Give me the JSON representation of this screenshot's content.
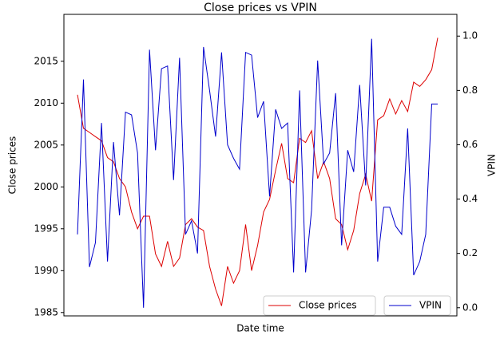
{
  "chart_data": {
    "type": "line",
    "title": "Close prices vs VPIN",
    "xlabel": "Date time",
    "ylabel": "Close prices",
    "y2label": "VPIN",
    "legend": "lower right",
    "ylim": [
      1984.6,
      2020.6
    ],
    "yticks": [
      1985,
      1990,
      1995,
      2000,
      2005,
      2010,
      2015
    ],
    "y2lim": [
      -0.03,
      1.08
    ],
    "y2ticks": [
      {
        "value": 0,
        "label": "0.0"
      },
      0.2,
      0.4,
      0.6,
      0.8,
      {
        "value": 1,
        "label": "1.0"
      }
    ],
    "series": [
      {
        "name": "Close prices",
        "color": "#dd0000",
        "values": [
          2011,
          2007,
          2006.5,
          2006,
          2005.5,
          2003.5,
          2003,
          2001,
          2000,
          1997,
          1995,
          1996.5,
          1996.5,
          1992,
          1990.5,
          1993.5,
          1990.5,
          1991.5,
          1995.5,
          1996.2,
          1995.2,
          1994.8,
          1990.5,
          1987.8,
          1985.8,
          1990.5,
          1988.5,
          1990,
          1995.5,
          1990,
          1993,
          1997,
          1998.5,
          2002,
          2005.2,
          2001,
          2000.5,
          2005.8,
          2005.3,
          2006.7,
          2001,
          2003,
          2001,
          1996.2,
          1995.5,
          1992.5,
          1994.8,
          1999.2,
          2001.5,
          1998.3,
          2008,
          2008.5,
          2010.5,
          2008.7,
          2010.3,
          2009,
          2012.5,
          2012,
          2012.8,
          2014,
          2017.8
        ]
      },
      {
        "name": "VPIN",
        "color": "#0000cc",
        "axis": "y2",
        "values": [
          0.27,
          0.84,
          0.15,
          0.24,
          0.68,
          0.17,
          0.61,
          0.34,
          0.72,
          0.71,
          0.57,
          0.0,
          0.95,
          0.58,
          0.88,
          0.89,
          0.47,
          0.92,
          0.27,
          0.32,
          0.2,
          0.96,
          0.8,
          0.63,
          0.94,
          0.6,
          0.55,
          0.51,
          0.94,
          0.93,
          0.7,
          0.76,
          0.41,
          0.73,
          0.66,
          0.68,
          0.13,
          0.8,
          0.13,
          0.36,
          0.91,
          0.53,
          0.57,
          0.79,
          0.23,
          0.58,
          0.5,
          0.82,
          0.45,
          0.99,
          0.17,
          0.37,
          0.37,
          0.3,
          0.27,
          0.66,
          0.12,
          0.17,
          0.27,
          0.75,
          0.75
        ]
      }
    ]
  }
}
